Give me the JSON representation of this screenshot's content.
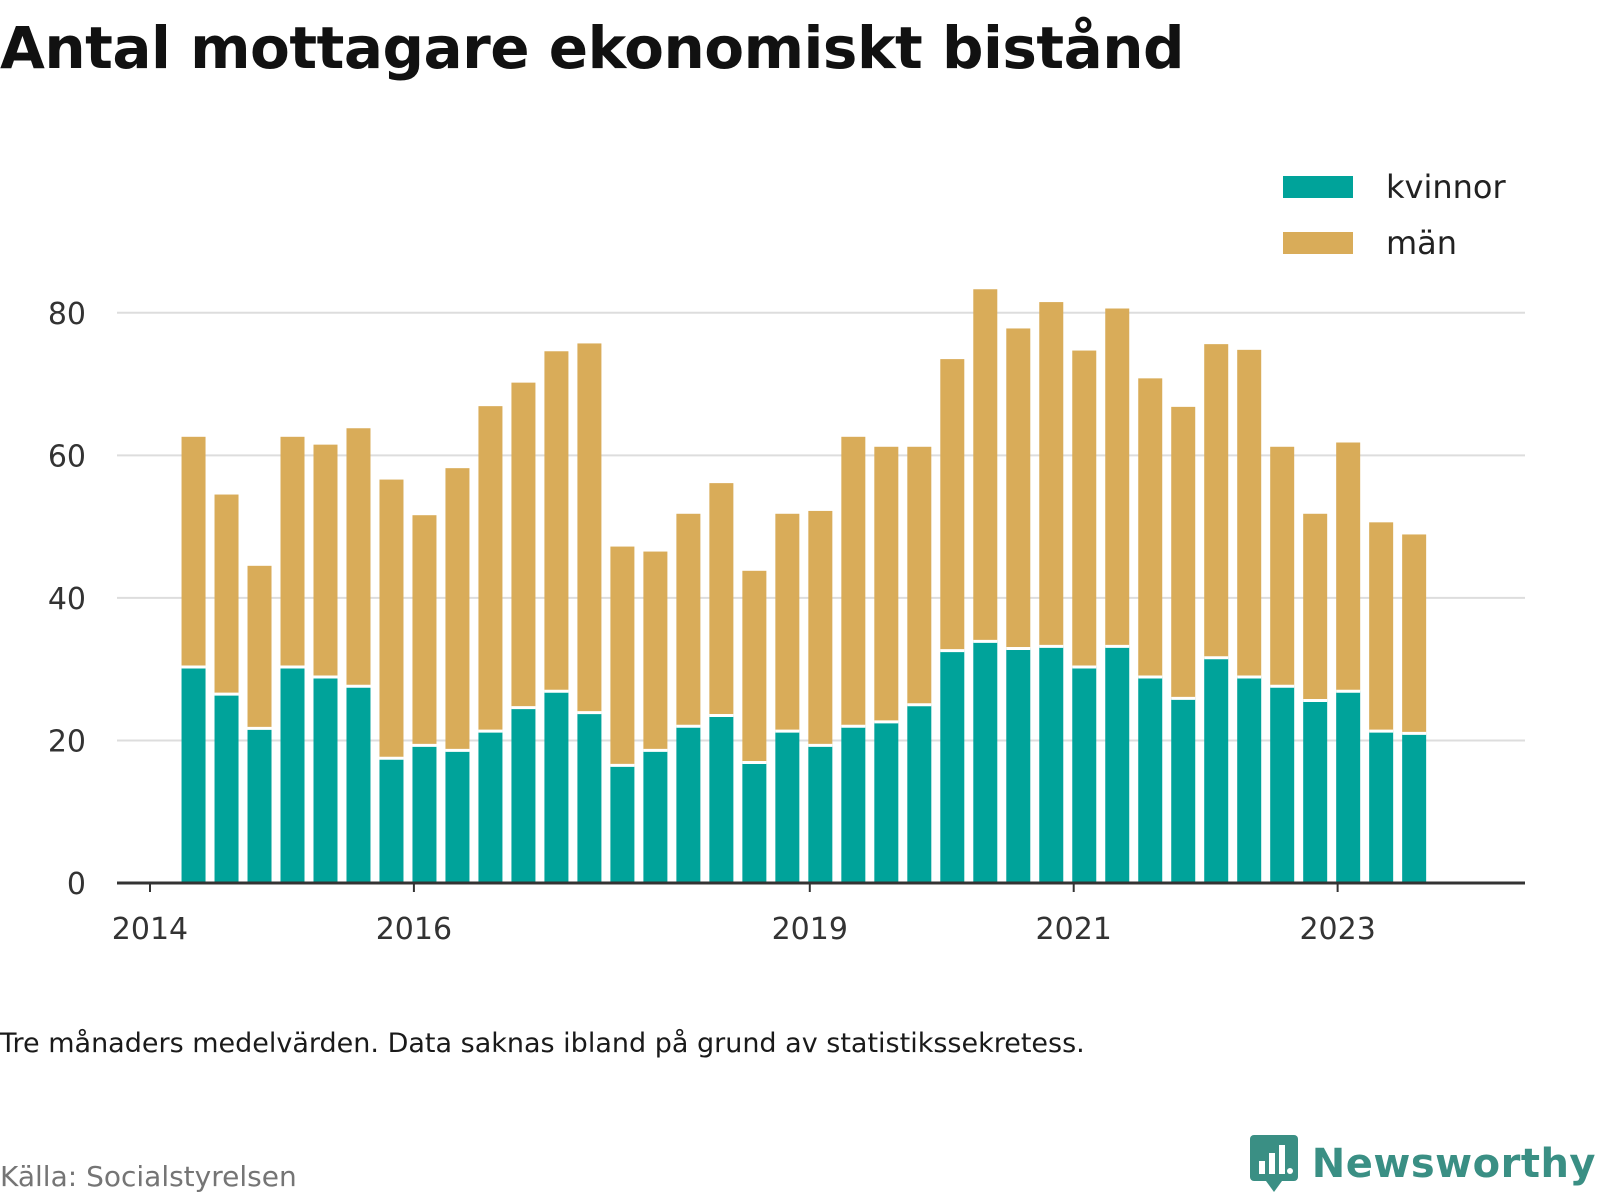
{
  "title": "Antal mottagare ekonomiskt bistånd",
  "note": "Tre månaders medelvärden. Data saknas ibland på grund av statistikssekretess.",
  "source": "Källa: Socialstyrelsen",
  "brand": {
    "name": "Newsworthy",
    "icon": "newsworthy-logo-icon",
    "color": "#3a8f84"
  },
  "colors": {
    "kvinnor": "#00a39a",
    "man": "#d9ac59",
    "grid": "#dddddd",
    "axis": "#333333"
  },
  "chart_data": {
    "type": "bar",
    "stacked": true,
    "ylim": [
      0,
      90
    ],
    "yticks": [
      0,
      20,
      40,
      60,
      80
    ],
    "xticks": [
      {
        "label": "2014",
        "x": 2014.0
      },
      {
        "label": "2016",
        "x": 2016.0
      },
      {
        "label": "2019",
        "x": 2019.0
      },
      {
        "label": "2021",
        "x": 2021.0
      },
      {
        "label": "2023",
        "x": 2023.0
      }
    ],
    "x": [
      2014.33,
      2014.58,
      2014.83,
      2015.08,
      2015.33,
      2015.58,
      2015.83,
      2016.08,
      2016.33,
      2016.58,
      2016.83,
      2017.08,
      2017.33,
      2017.58,
      2017.83,
      2018.08,
      2018.33,
      2018.58,
      2018.83,
      2019.08,
      2019.33,
      2019.58,
      2019.83,
      2020.08,
      2020.33,
      2020.58,
      2020.83,
      2021.08,
      2021.33,
      2021.58,
      2021.83,
      2022.08,
      2022.33,
      2022.58,
      2022.83,
      2023.08,
      2023.33,
      2023.58
    ],
    "series": [
      {
        "name": "kvinnor",
        "color": "#00a39a",
        "values": [
          30.3,
          26.5,
          21.7,
          30.3,
          28.9,
          27.6,
          17.5,
          19.3,
          18.6,
          21.3,
          24.6,
          26.9,
          23.9,
          16.5,
          18.6,
          22.0,
          23.5,
          16.9,
          21.3,
          19.3,
          22.0,
          22.6,
          25.0,
          32.6,
          33.9,
          32.9,
          33.2,
          30.3,
          33.2,
          28.9,
          25.9,
          31.6,
          28.9,
          27.6,
          25.6,
          26.9,
          21.3,
          21.0
        ]
      },
      {
        "name": "män",
        "color": "#d9ac59",
        "values": [
          32.3,
          28.0,
          22.8,
          32.3,
          32.6,
          36.2,
          39.1,
          32.3,
          39.6,
          45.6,
          45.6,
          47.7,
          51.8,
          30.7,
          27.9,
          29.8,
          32.6,
          26.9,
          30.5,
          32.9,
          40.6,
          38.6,
          36.2,
          40.9,
          49.4,
          44.9,
          48.3,
          44.4,
          47.4,
          41.9,
          40.9,
          44.0,
          45.9,
          33.6,
          26.2,
          34.9,
          29.3,
          27.9
        ]
      }
    ],
    "legend": {
      "position": "top-right",
      "entries": [
        "kvinnor",
        "män"
      ]
    },
    "grid": true
  }
}
